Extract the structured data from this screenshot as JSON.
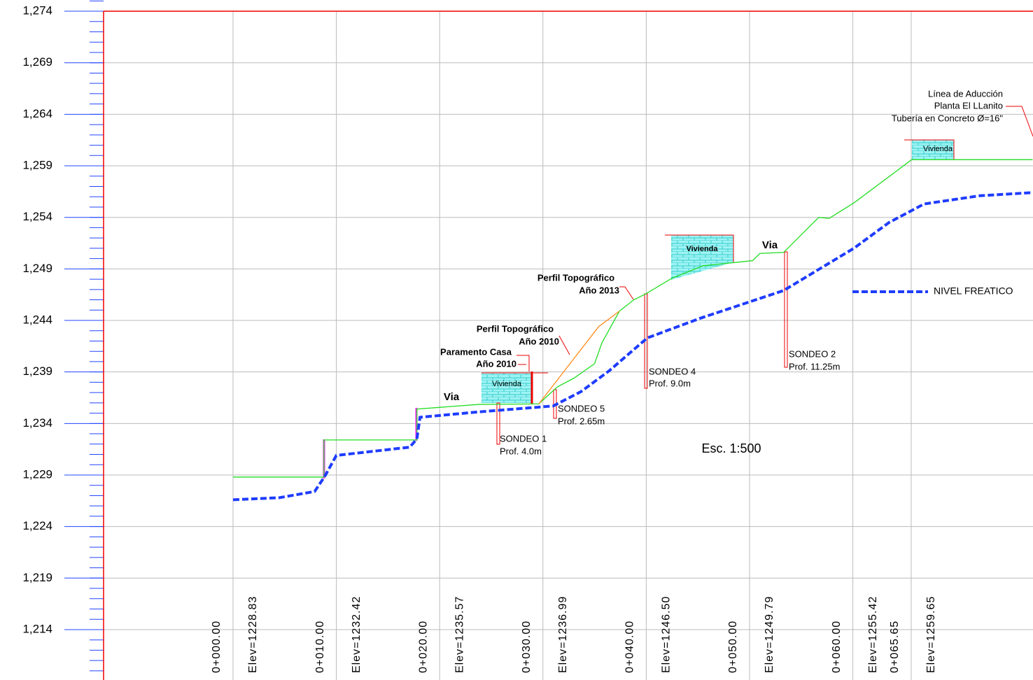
{
  "chart_data": {
    "type": "line",
    "xlim": [
      -12.53,
      77.44
    ],
    "ylim": [
      1209.11,
      1275.09
    ],
    "grid": true,
    "minor_tick_step": 1,
    "yticks": [
      {
        "value": 1214,
        "label": "1,214"
      },
      {
        "value": 1219,
        "label": "1,219"
      },
      {
        "value": 1224,
        "label": "1,224"
      },
      {
        "value": 1229,
        "label": "1,229"
      },
      {
        "value": 1234,
        "label": "1,234"
      },
      {
        "value": 1239,
        "label": "1,239"
      },
      {
        "value": 1244,
        "label": "1,244"
      },
      {
        "value": 1249,
        "label": "1,249"
      },
      {
        "value": 1254,
        "label": "1,254"
      },
      {
        "value": 1259,
        "label": "1,259"
      },
      {
        "value": 1264,
        "label": "1,264"
      },
      {
        "value": 1269,
        "label": "1,269"
      },
      {
        "value": 1274,
        "label": "1,274"
      }
    ],
    "xticks": [
      {
        "value": 0,
        "label": "0+000.00"
      },
      {
        "value": 10,
        "label": "0+010.00"
      },
      {
        "value": 20,
        "label": "0+020.00"
      },
      {
        "value": 30,
        "label": "0+030.00"
      },
      {
        "value": 40,
        "label": "0+040.00"
      },
      {
        "value": 50,
        "label": "0+050.00"
      },
      {
        "value": 60,
        "label": "0+060.00"
      },
      {
        "value": 65.65,
        "label": "0+065.65"
      }
    ],
    "elevation_labels": [
      "Elev=1228.83",
      "Elev=1232.42",
      "Elev=1235.57",
      "Elev=1236.99",
      "Elev=1246.50",
      "Elev=1249.79",
      "Elev=1255.42",
      "Elev=1259.65"
    ],
    "series": [
      {
        "color": "#22dd22",
        "style": "solid",
        "x": [
          0,
          8.8,
          8.8,
          17.8,
          17.8,
          23.8,
          29.6,
          31.4,
          33.0,
          35.0,
          35.7,
          37.4,
          38.8,
          40,
          42.5,
          45.5,
          50.3,
          51,
          53.3,
          55.4,
          56.7,
          57.7,
          60.1,
          65.7,
          77.4
        ],
        "values": [
          1228.8,
          1228.8,
          1232.4,
          1232.4,
          1235.4,
          1235.85,
          1235.9,
          1237.55,
          1238.4,
          1239.8,
          1241.8,
          1244.9,
          1246.0,
          1246.6,
          1248.1,
          1249.3,
          1249.8,
          1250.5,
          1250.6,
          1252.7,
          1254.0,
          1253.9,
          1255.4,
          1259.6,
          1259.6
        ]
      },
      {
        "color": "#ff8c1a",
        "style": "solid",
        "x": [
          29.6,
          35.4,
          37.4
        ],
        "values": [
          1235.9,
          1243.4,
          1244.9
        ]
      },
      {
        "name": "NIVEL FREATICO",
        "color": "#1e3cff",
        "style": "dashed",
        "x": [
          0,
          4.5,
          7.9,
          8.9,
          10,
          17.1,
          17.8,
          18.1,
          23.5,
          31,
          33.7,
          36.4,
          40.1,
          45.2,
          53.3,
          60.1,
          63.5,
          66.9,
          72.3,
          77.4
        ],
        "values": [
          1226.6,
          1226.8,
          1227.4,
          1228.9,
          1230.9,
          1231.7,
          1232.5,
          1234.6,
          1235.1,
          1235.7,
          1237.1,
          1239.1,
          1242.3,
          1244.2,
          1246.9,
          1251.0,
          1253.5,
          1255.3,
          1256.1,
          1256.4
        ]
      }
    ],
    "annotations": [
      "Línea de Aducción",
      "Planta El LLanito",
      "Tubería en Concreto Ø=16\"",
      "Vivienda",
      "Vivienda",
      "Vivienda",
      "Via",
      "Via",
      "Perfil Topográfico",
      "Año 2013",
      "Perfil Topográfico",
      "Año 2010",
      "Paramento Casa",
      "Año 2010",
      "SONDEO 1",
      "Prof. 4.0m",
      "SONDEO 5",
      "Prof. 2.65m",
      "SONDEO 4",
      "Prof. 9.0m",
      "SONDEO 2",
      "Prof. 11.25m",
      "Esc. 1:500"
    ]
  }
}
